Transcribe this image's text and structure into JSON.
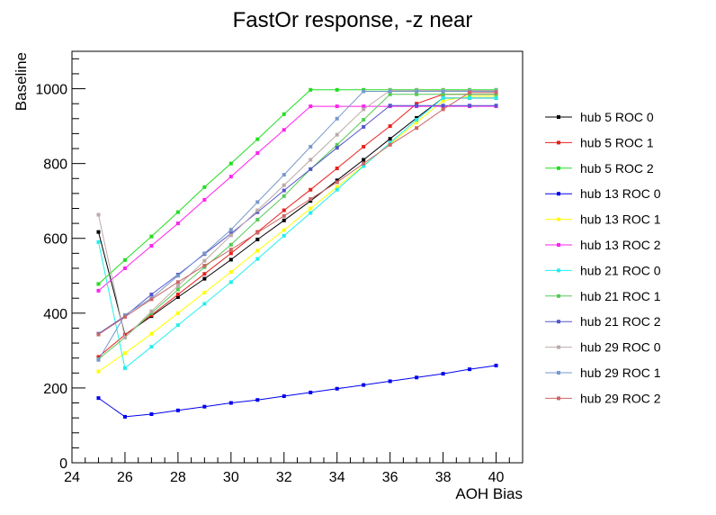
{
  "chart_data": {
    "type": "line",
    "title": "FastOr response, -z near",
    "xlabel": "AOH Bias",
    "ylabel": "Baseline",
    "xlim": [
      24,
      41
    ],
    "ylim": [
      0,
      1100
    ],
    "xticks": [
      24,
      26,
      28,
      30,
      32,
      34,
      36,
      38,
      40
    ],
    "yticks": [
      0,
      200,
      400,
      600,
      800,
      1000
    ],
    "grid": false,
    "legend_position": "right",
    "x": [
      25,
      26,
      27,
      28,
      29,
      30,
      31,
      32,
      33,
      34,
      35,
      36,
      37,
      38,
      39,
      40
    ],
    "series": [
      {
        "name": "hub 5 ROC 0",
        "color": "#000000",
        "values": [
          617,
          342,
          392,
          443,
          492,
          543,
          597,
          648,
          700,
          755,
          810,
          866,
          922,
          975,
          975,
          975
        ]
      },
      {
        "name": "hub 5 ROC 1",
        "color": "#e8201d",
        "values": [
          283,
          342,
          395,
          450,
          505,
          560,
          617,
          675,
          730,
          787,
          845,
          900,
          960,
          985,
          985,
          985
        ]
      },
      {
        "name": "hub 5 ROC 2",
        "color": "#22dd22",
        "values": [
          478,
          542,
          605,
          670,
          737,
          800,
          865,
          932,
          997,
          997,
          997,
          997,
          997,
          997,
          997,
          997
        ]
      },
      {
        "name": "hub 13 ROC 0",
        "color": "#0000ee",
        "values": [
          173,
          123,
          130,
          140,
          150,
          160,
          168,
          178,
          188,
          198,
          208,
          218,
          228,
          238,
          250,
          260
        ]
      },
      {
        "name": "hub 13 ROC 1",
        "color": "#ffff00",
        "values": [
          244,
          293,
          345,
          400,
          455,
          510,
          567,
          622,
          680,
          737,
          795,
          852,
          910,
          968,
          980,
          980
        ]
      },
      {
        "name": "hub 13 ROC 2",
        "color": "#ff22ee",
        "values": [
          460,
          520,
          580,
          640,
          703,
          765,
          828,
          890,
          953,
          953,
          953,
          953,
          953,
          953,
          953,
          953
        ]
      },
      {
        "name": "hub 21 ROC 0",
        "color": "#22eeee",
        "values": [
          590,
          253,
          310,
          368,
          425,
          483,
          545,
          607,
          668,
          730,
          793,
          855,
          917,
          975,
          975,
          975
        ]
      },
      {
        "name": "hub 21 ROC 1",
        "color": "#55cc55",
        "values": [
          277,
          335,
          400,
          463,
          523,
          583,
          650,
          713,
          785,
          850,
          917,
          985,
          985,
          985,
          985,
          985
        ]
      },
      {
        "name": "hub 21 ROC 2",
        "color": "#5555cc",
        "values": [
          345,
          392,
          450,
          503,
          558,
          613,
          670,
          728,
          785,
          842,
          898,
          955,
          955,
          955,
          955,
          955
        ]
      },
      {
        "name": "hub 29 ROC 0",
        "color": "#bbaaaa",
        "values": [
          663,
          335,
          405,
          473,
          540,
          608,
          675,
          742,
          810,
          877,
          945,
          995,
          995,
          995,
          995,
          995
        ]
      },
      {
        "name": "hub 29 ROC 1",
        "color": "#7799cc",
        "values": [
          275,
          395,
          440,
          500,
          560,
          623,
          697,
          770,
          845,
          920,
          993,
          993,
          993,
          993,
          993,
          993
        ]
      },
      {
        "name": "hub 29 ROC 2",
        "color": "#cc6666",
        "values": [
          343,
          390,
          437,
          483,
          527,
          570,
          615,
          660,
          705,
          750,
          800,
          850,
          895,
          945,
          990,
          990
        ]
      }
    ]
  }
}
